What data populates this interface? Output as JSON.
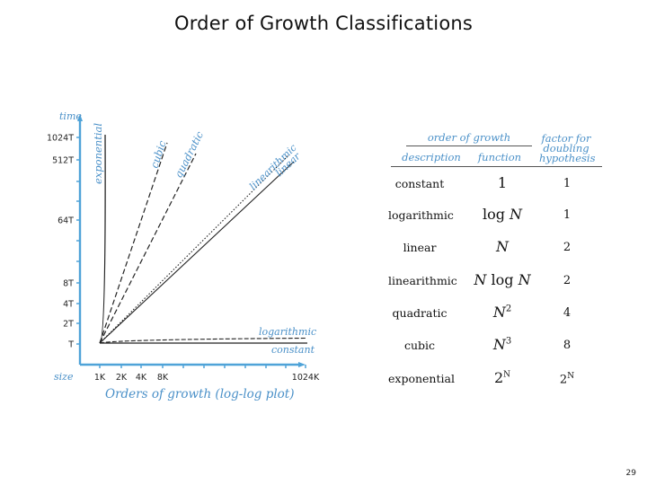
{
  "slide": {
    "title": "Order of Growth Classifications",
    "page_number": "29"
  },
  "plot": {
    "caption": "Orders of growth (log-log plot)",
    "y_axis_label": "time",
    "x_axis_label": "size",
    "y_ticks": [
      "1024T",
      "512T",
      "64T",
      "8T",
      "4T",
      "2T",
      "T"
    ],
    "x_ticks": [
      "1K",
      "2K",
      "4K",
      "8K",
      "1024K"
    ],
    "curve_labels": {
      "exponential": "exponential",
      "cubic": "cubic",
      "quadratic": "quadratic",
      "linearithmic": "linearithmic",
      "linear": "linear",
      "logarithmic": "logarithmic",
      "constant": "constant"
    },
    "axis_color": "#4fa3d8"
  },
  "table": {
    "group_header_order": "order of growth",
    "group_header_factor": [
      "factor for",
      "doubling",
      "hypothesis"
    ],
    "col_description": "description",
    "col_function": "function",
    "rows": [
      {
        "description": "constant",
        "function": "1",
        "factor": "1"
      },
      {
        "description": "logarithmic",
        "function": "log N",
        "factor": "1"
      },
      {
        "description": "linear",
        "function": "N",
        "factor": "2"
      },
      {
        "description": "linearithmic",
        "function": "N log N",
        "factor": "2"
      },
      {
        "description": "quadratic",
        "function": "N 2",
        "factor": "4"
      },
      {
        "description": "cubic",
        "function": "N 3",
        "factor": "8"
      },
      {
        "description": "exponential",
        "function": "2 N",
        "factor": "2 N"
      }
    ]
  }
}
